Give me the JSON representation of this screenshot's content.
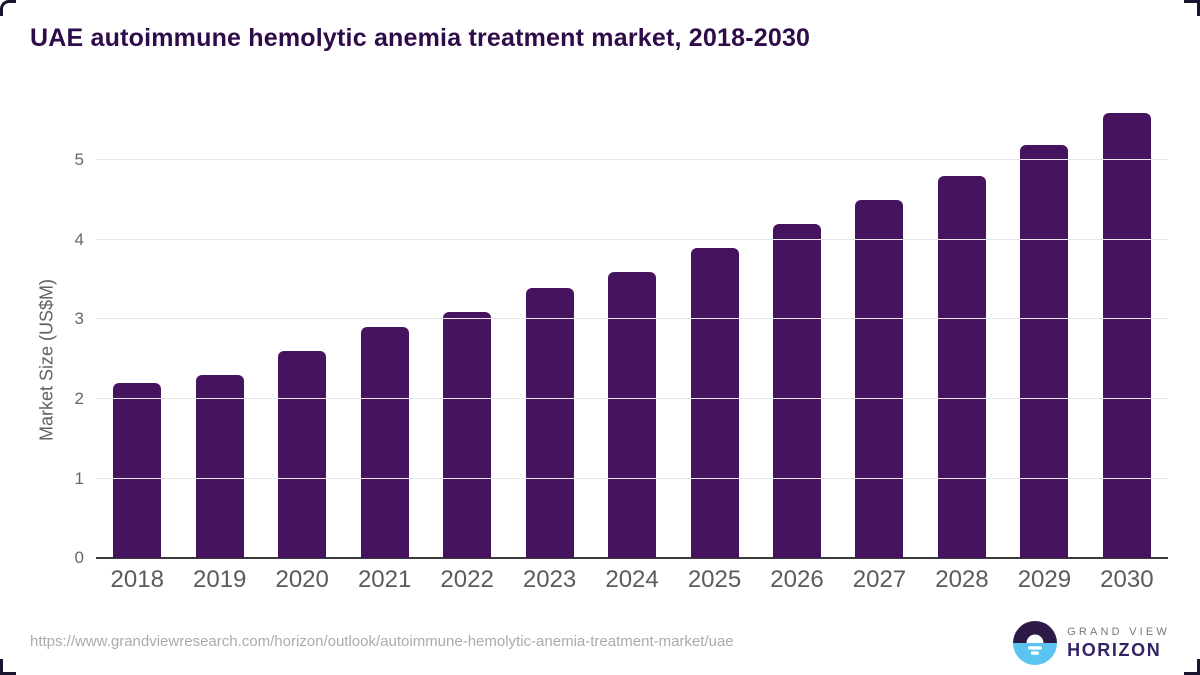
{
  "title": "UAE autoimmune hemolytic anemia treatment market, 2018-2030",
  "chart_data": {
    "type": "bar",
    "categories": [
      "2018",
      "2019",
      "2020",
      "2021",
      "2022",
      "2023",
      "2024",
      "2025",
      "2026",
      "2027",
      "2028",
      "2029",
      "2030"
    ],
    "values": [
      2.2,
      2.3,
      2.6,
      2.9,
      3.1,
      3.4,
      3.6,
      3.9,
      4.2,
      4.5,
      4.8,
      5.2,
      5.6
    ],
    "title": "UAE autoimmune hemolytic anemia treatment market, 2018-2030",
    "xlabel": "",
    "ylabel": "Market Size (US$M)",
    "ylim": [
      0,
      5.76
    ],
    "yticks": [
      0,
      1,
      2,
      3,
      4,
      5
    ],
    "grid": true,
    "legend": "none",
    "bar_color": "#46145f"
  },
  "colors": {
    "bar": "#46145f",
    "title_text": "#2e0b49",
    "axis_text": "#5f6063",
    "gridline": "#e8e8ea",
    "baseline": "#3b3b3d",
    "url_text": "#a9abae",
    "logo_circle_top": "#2e1a47",
    "logo_circle_bottom": "#5bc4f0",
    "logo_horizon_text": "#352464",
    "logo_grandview_text": "#77787c"
  },
  "footer": {
    "source_url": "https://www.grandviewresearch.com/horizon/outlook/autoimmune-hemolytic-anemia-treatment-market/uae",
    "logo": {
      "line1": "GRAND VIEW",
      "line2": "HORIZON"
    }
  }
}
